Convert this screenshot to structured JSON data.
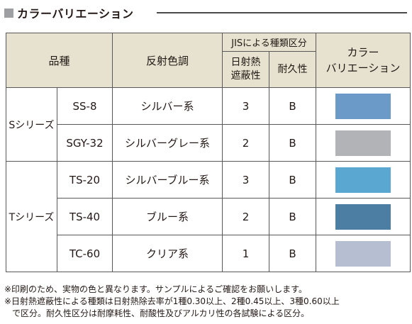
{
  "heading": {
    "title": "カラーバリエーション"
  },
  "table": {
    "headers": {
      "product": "品種",
      "reflect_color": "反射色調",
      "jis_group": "JISによる種類区分",
      "solar": "日射熱\n遮蔽性",
      "durability": "耐久性",
      "color_variation": "カラー\nバリエーション"
    },
    "series": [
      {
        "name": "Sシリーズ"
      },
      {
        "name": "Tシリーズ"
      }
    ],
    "rows": [
      {
        "code": "SS-8",
        "tone": "シルバー系",
        "solar": "3",
        "durability": "B",
        "swatch": "#6c9ac8"
      },
      {
        "code": "SGY-32",
        "tone": "シルバーグレー系",
        "solar": "2",
        "durability": "B",
        "swatch": "#b2b3b6"
      },
      {
        "code": "TS-20",
        "tone": "シルバーブルー系",
        "solar": "3",
        "durability": "B",
        "swatch": "#5aa7d2"
      },
      {
        "code": "TS-40",
        "tone": "ブルー系",
        "solar": "2",
        "durability": "B",
        "swatch": "#4c7ea4"
      },
      {
        "code": "TC-60",
        "tone": "クリア系",
        "solar": "1",
        "durability": "B",
        "swatch": "#b6bfd1"
      }
    ]
  },
  "notes": {
    "line1": "※印刷のため、実物の色と異なります。サンプルによるご確認をお願いします。",
    "line2": "※日射熱遮蔽性による種類は日射熱除去率が1種0.30以上、2種0.45以上、3種0.60以上",
    "line3": "で区分。耐久性区分は耐摩耗性、耐酸性及びアルカリ性の各試験による区分。"
  }
}
